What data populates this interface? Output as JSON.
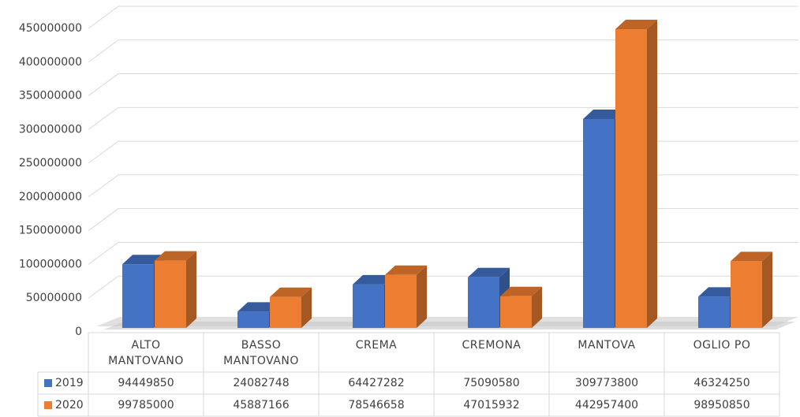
{
  "chart_data": {
    "type": "bar3d",
    "categories": [
      "ALTO MANTOVANO",
      "BASSO MANTOVANO",
      "CREMA",
      "CREMONA",
      "MANTOVA",
      "OGLIO PO"
    ],
    "series": [
      {
        "name": "2019",
        "color": "#4472c4",
        "values": [
          94449850,
          24082748,
          64427282,
          75090580,
          309773800,
          46324250
        ]
      },
      {
        "name": "2020",
        "color": "#ed7d31",
        "values": [
          99785000,
          45887166,
          78546658,
          47015932,
          442957400,
          98950850
        ]
      }
    ],
    "ylim": [
      0,
      450000000
    ],
    "yticks": [
      0,
      50000000,
      100000000,
      150000000,
      200000000,
      250000000,
      300000000,
      350000000,
      400000000,
      450000000
    ],
    "grid": true,
    "data_table": true
  }
}
